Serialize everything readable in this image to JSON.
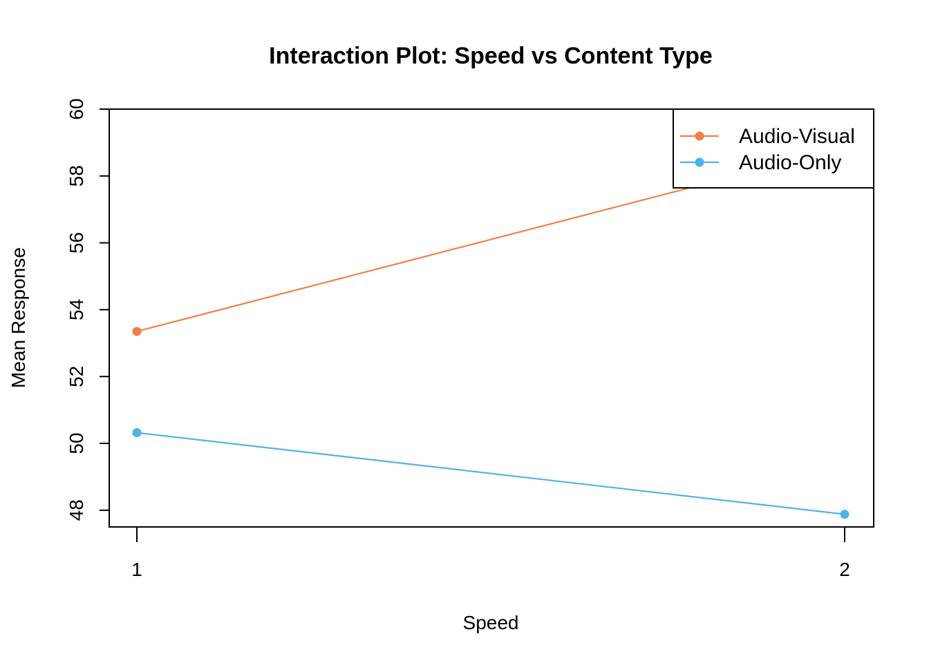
{
  "chart_data": {
    "type": "line",
    "title": "Interaction Plot: Speed vs Content Type",
    "xlabel": "Speed",
    "ylabel": "Mean Response",
    "x": [
      1,
      2
    ],
    "x_ticks": [
      "1",
      "2"
    ],
    "y_ticks": [
      "48",
      "50",
      "52",
      "54",
      "56",
      "58",
      "60"
    ],
    "ylim": [
      47.5,
      60.0
    ],
    "series": [
      {
        "name": "Audio-Visual",
        "color": "#F07F45",
        "values": [
          53.35,
          58.85
        ]
      },
      {
        "name": "Audio-Only",
        "color": "#4EB3E6",
        "values": [
          50.32,
          47.88
        ]
      }
    ],
    "legend": {
      "position": "top-right"
    },
    "grid": false
  }
}
